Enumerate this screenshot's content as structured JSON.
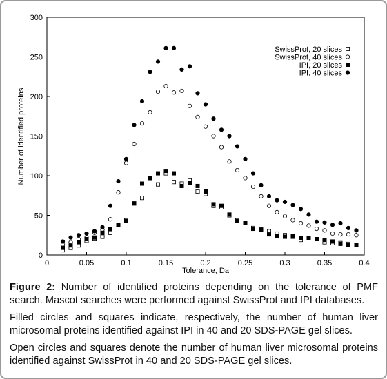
{
  "chart_data": {
    "type": "scatter",
    "xlabel": "Tolerance, Da",
    "ylabel": "Number of identified proteins",
    "x": [
      0.02,
      0.03,
      0.04,
      0.05,
      0.06,
      0.07,
      0.08,
      0.09,
      0.1,
      0.11,
      0.12,
      0.13,
      0.14,
      0.15,
      0.16,
      0.17,
      0.18,
      0.19,
      0.2,
      0.21,
      0.22,
      0.23,
      0.24,
      0.25,
      0.26,
      0.27,
      0.28,
      0.29,
      0.3,
      0.31,
      0.32,
      0.33,
      0.34,
      0.35,
      0.36,
      0.37,
      0.38,
      0.39
    ],
    "xlim": [
      0,
      0.4
    ],
    "xticks": [
      0,
      0.05,
      0.1,
      0.15,
      0.2,
      0.25,
      0.3,
      0.35,
      0.4
    ],
    "ylim": [
      0,
      300
    ],
    "yticks": [
      0,
      50,
      100,
      150,
      200,
      250,
      300
    ],
    "legend": "upper right",
    "series": [
      {
        "name": "SwissProt, 20 slices",
        "color": "#000000",
        "marker": "open-square",
        "values": [
          6,
          9,
          12,
          18,
          20,
          23,
          28,
          38,
          44,
          65,
          72,
          97,
          89,
          103,
          92,
          90,
          94,
          80,
          77,
          62,
          60,
          50,
          44,
          40,
          34,
          32,
          30,
          27,
          25,
          23,
          19,
          21,
          20,
          16,
          15,
          15,
          14,
          13
        ]
      },
      {
        "name": "SwissProt, 40 slices",
        "color": "#000000",
        "marker": "open-circle",
        "values": [
          13,
          16,
          20,
          22,
          28,
          32,
          45,
          79,
          116,
          140,
          166,
          180,
          206,
          213,
          205,
          207,
          188,
          174,
          162,
          150,
          136,
          118,
          107,
          97,
          86,
          74,
          62,
          54,
          49,
          44,
          40,
          37,
          33,
          31,
          27,
          26,
          26,
          25
        ]
      },
      {
        "name": "IPI, 20 slices",
        "color": "#000000",
        "marker": "filled-square",
        "values": [
          9,
          12,
          16,
          20,
          22,
          28,
          33,
          38,
          43,
          65,
          90,
          97,
          103,
          106,
          103,
          87,
          91,
          87,
          80,
          64,
          62,
          51,
          43,
          40,
          33,
          32,
          26,
          24,
          23,
          24,
          21,
          21,
          20,
          19,
          17,
          14,
          13,
          13
        ]
      },
      {
        "name": "IPI, 40 slices",
        "color": "#000000",
        "marker": "filled-circle",
        "values": [
          17,
          22,
          25,
          27,
          30,
          35,
          62,
          93,
          121,
          164,
          194,
          231,
          244,
          261,
          261,
          234,
          238,
          204,
          190,
          172,
          158,
          150,
          137,
          121,
          103,
          88,
          74,
          69,
          67,
          63,
          58,
          51,
          42,
          41,
          38,
          40,
          34,
          31
        ]
      }
    ]
  },
  "caption": {
    "label": "Figure 2:",
    "text": "Number of identified proteins depending on the tolerance of PMF search. Mascot searches were performed against SwissProt and IPI databases.",
    "paragraphs": [
      "Filled circles and squares indicate, respectively, the number of human liver microsomal proteins identified against IPI in 40 and 20 SDS-PAGE gel slices.",
      "Open circles and squares denote the number of human liver microsomal proteins identified against SwissProt in 40 and 20 SDS-PAGE gel slices."
    ]
  }
}
